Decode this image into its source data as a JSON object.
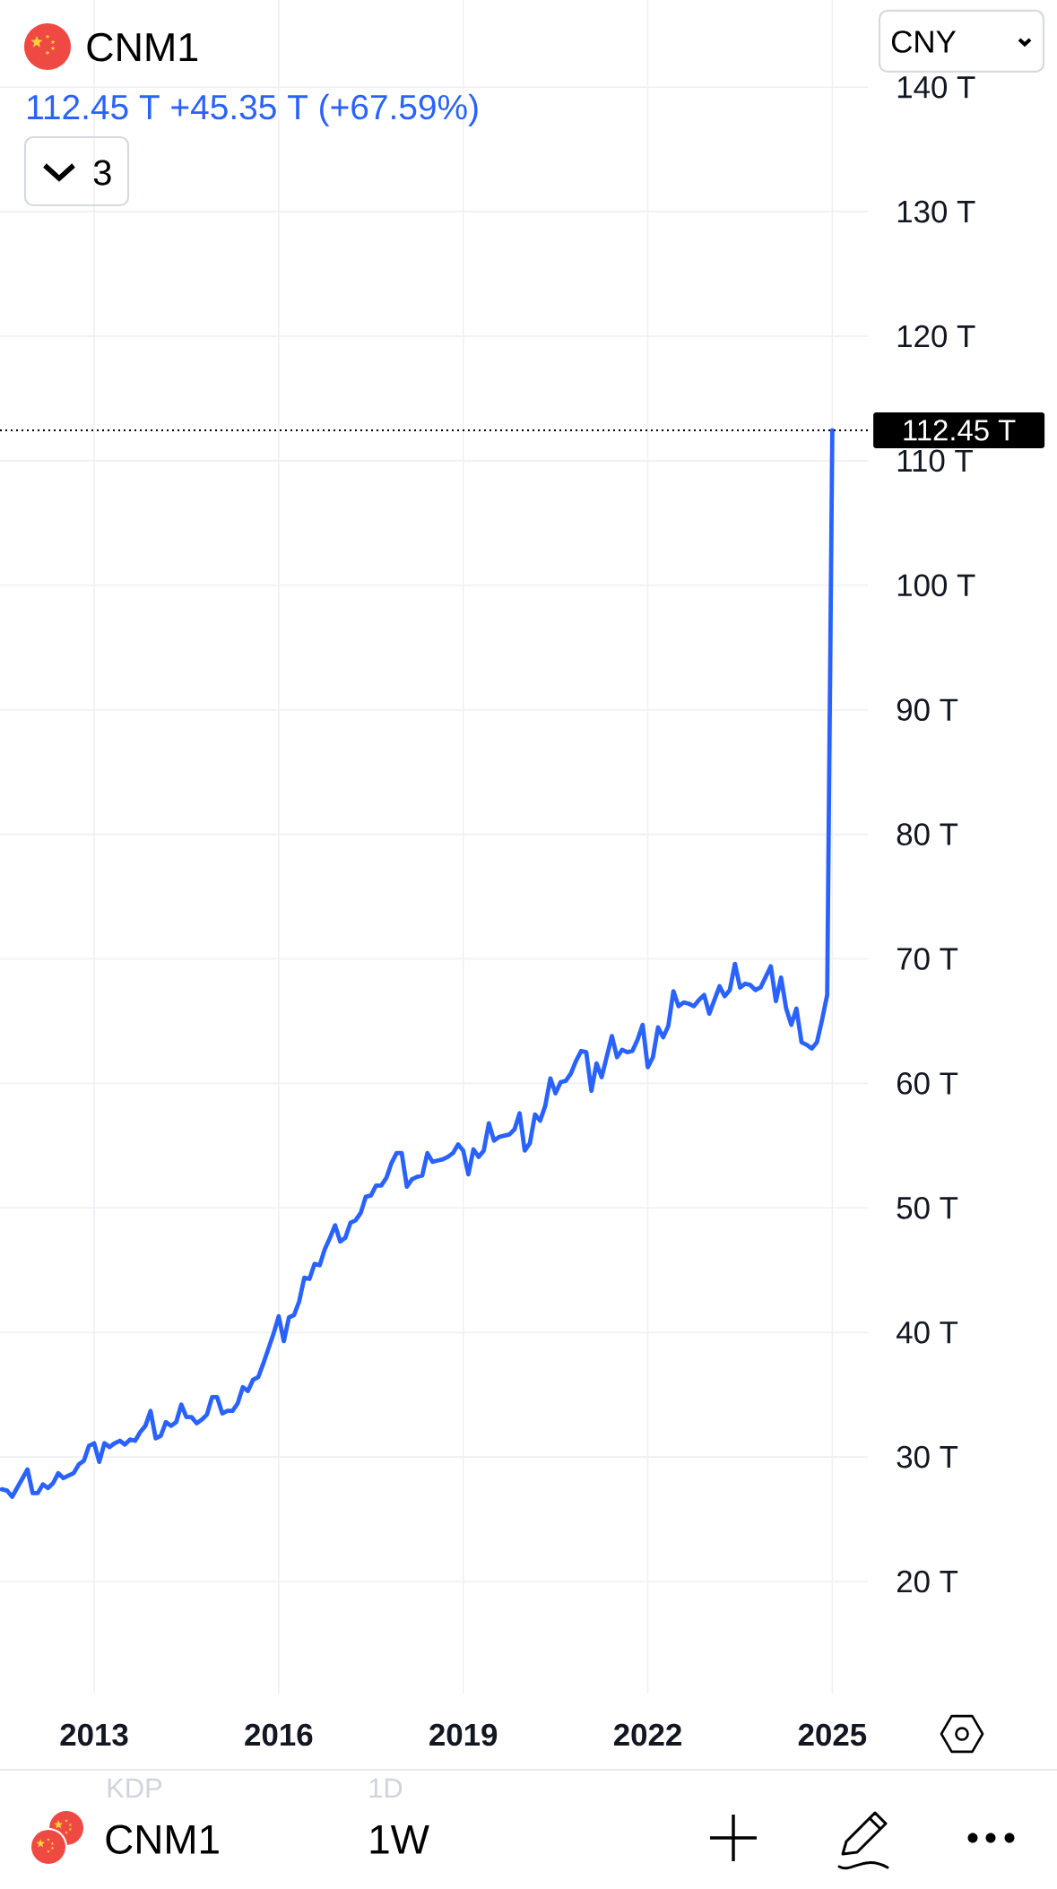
{
  "chart_data": {
    "type": "line",
    "title": "CNM1",
    "subtitle": "112.45 T  +45.35 T (+67.59%)",
    "annotations": [
      "3",
      "CNY",
      "KDP",
      "1D",
      "CNM1",
      "1W"
    ],
    "x": [
      "2011-07",
      "2011-08",
      "2011-09",
      "2011-12",
      "2012-01",
      "2012-02",
      "2012-03",
      "2012-04",
      "2012-05",
      "2012-06",
      "2012-07",
      "2012-09",
      "2012-10",
      "2012-11",
      "2012-12",
      "2013-01",
      "2013-02",
      "2013-03",
      "2013-04",
      "2013-05",
      "2013-06",
      "2013-07",
      "2013-08",
      "2013-09",
      "2013-10",
      "2013-11",
      "2013-12",
      "2014-01",
      "2014-02",
      "2014-03",
      "2014-04",
      "2014-05",
      "2014-06",
      "2014-07",
      "2014-08",
      "2014-09",
      "2014-10",
      "2014-11",
      "2014-12",
      "2015-01",
      "2015-02",
      "2015-03",
      "2015-04",
      "2015-05",
      "2015-06",
      "2015-07",
      "2015-08",
      "2015-09",
      "2015-10",
      "2015-11",
      "2015-12",
      "2016-01",
      "2016-02",
      "2016-03",
      "2016-04",
      "2016-05",
      "2016-06",
      "2016-07",
      "2016-08",
      "2016-09",
      "2016-10",
      "2016-11",
      "2016-12",
      "2017-01",
      "2017-02",
      "2017-03",
      "2017-04",
      "2017-05",
      "2017-06",
      "2017-07",
      "2017-08",
      "2017-09",
      "2017-10",
      "2017-11",
      "2017-12",
      "2018-01",
      "2018-02",
      "2018-03",
      "2018-04",
      "2018-05",
      "2018-06",
      "2018-07",
      "2018-08",
      "2018-09",
      "2018-10",
      "2018-11",
      "2018-12",
      "2019-01",
      "2019-02",
      "2019-03",
      "2019-04",
      "2019-05",
      "2019-06",
      "2019-07",
      "2019-08",
      "2019-10",
      "2019-11",
      "2019-12",
      "2020-01",
      "2020-02",
      "2020-03",
      "2020-04",
      "2020-05",
      "2020-06",
      "2020-07",
      "2020-08",
      "2020-09",
      "2020-10",
      "2020-11",
      "2020-12",
      "2021-01",
      "2021-02",
      "2021-03",
      "2021-04",
      "2021-06",
      "2021-07",
      "2021-08",
      "2021-09",
      "2021-10",
      "2021-11",
      "2021-12",
      "2022-01",
      "2022-02",
      "2022-03",
      "2022-04",
      "2022-05",
      "2022-06",
      "2022-07",
      "2022-08",
      "2022-09",
      "2022-10",
      "2022-11",
      "2022-12",
      "2023-01",
      "2023-03",
      "2023-04",
      "2023-05",
      "2023-06",
      "2023-07",
      "2023-08",
      "2023-09",
      "2023-10",
      "2023-11",
      "2024-01",
      "2024-02",
      "2024-03",
      "2024-04",
      "2024-05",
      "2024-06",
      "2024-07",
      "2024-08",
      "2024-09",
      "2024-10",
      "2024-11",
      "2024-12",
      "2025-01"
    ],
    "series": [
      {
        "color": "#2962ff",
        "values": [
          27.4,
          27.3,
          26.8,
          29.0,
          27.1,
          27.1,
          27.8,
          27.5,
          27.9,
          28.7,
          28.3,
          28.7,
          29.4,
          29.7,
          30.9,
          31.1,
          29.6,
          31.1,
          30.8,
          31.1,
          31.3,
          31.0,
          31.4,
          31.3,
          32.0,
          32.5,
          33.7,
          31.5,
          31.7,
          32.8,
          32.5,
          32.8,
          34.2,
          33.2,
          33.2,
          32.7,
          33.0,
          33.4,
          34.8,
          34.8,
          33.5,
          33.7,
          33.7,
          34.3,
          35.6,
          35.3,
          36.2,
          36.4,
          37.5,
          38.7,
          39.9,
          41.3,
          39.3,
          41.2,
          41.4,
          42.5,
          44.4,
          44.3,
          45.5,
          45.4,
          46.7,
          47.6,
          48.6,
          47.3,
          47.6,
          48.8,
          49.0,
          49.6,
          50.9,
          51.0,
          51.8,
          51.8,
          52.4,
          53.6,
          54.4,
          54.4,
          51.7,
          52.3,
          52.5,
          52.6,
          54.4,
          53.7,
          53.8,
          53.9,
          54.1,
          54.4,
          55.1,
          54.6,
          52.7,
          54.7,
          54.1,
          54.6,
          56.8,
          55.4,
          55.7,
          55.9,
          56.3,
          57.6,
          54.6,
          55.2,
          57.5,
          57.0,
          58.2,
          60.4,
          59.2,
          60.1,
          60.2,
          60.8,
          61.8,
          62.6,
          62.5,
          59.4,
          61.6,
          60.5,
          63.8,
          62.1,
          62.7,
          62.5,
          62.6,
          63.5,
          64.7,
          61.3,
          62.1,
          64.5,
          63.7,
          64.6,
          67.4,
          66.2,
          66.5,
          66.4,
          66.2,
          66.7,
          67.1,
          65.6,
          67.8,
          67.0,
          67.5,
          69.6,
          67.7,
          68.0,
          67.9,
          67.5,
          67.7,
          69.4,
          66.6,
          68.5,
          66.0,
          64.7,
          66.0,
          63.3,
          63.1,
          62.8,
          63.3,
          65.1,
          67.1,
          112.45
        ]
      }
    ],
    "xlim": [
      "2011-06-20",
      "2025-08-01"
    ],
    "xticks": [
      {
        "value": "2013",
        "label": "2013"
      },
      {
        "value": "2016",
        "label": "2016"
      },
      {
        "value": "2019",
        "label": "2019"
      },
      {
        "value": "2022",
        "label": "2022"
      },
      {
        "value": "2025",
        "label": "2025"
      }
    ],
    "ylim": [
      11,
      147
    ],
    "yticks": [
      {
        "value": 20,
        "label": "20 T"
      },
      {
        "value": 30,
        "label": "30 T"
      },
      {
        "value": 40,
        "label": "40 T"
      },
      {
        "value": 50,
        "label": "50 T"
      },
      {
        "value": 60,
        "label": "60 T"
      },
      {
        "value": 70,
        "label": "70 T"
      },
      {
        "value": 80,
        "label": "80 T"
      },
      {
        "value": 90,
        "label": "90 T"
      },
      {
        "value": 100,
        "label": "100 T"
      },
      {
        "value": 110,
        "label": "110 T"
      },
      {
        "value": 120,
        "label": "120 T"
      },
      {
        "value": 130,
        "label": "130 T"
      },
      {
        "value": 140,
        "label": "140 T"
      }
    ],
    "ref_lines": [
      {
        "axis": "y",
        "value": 112.45,
        "label": "112.45 T",
        "color": "#000000",
        "line_style": "dotted"
      }
    ],
    "grid": true,
    "marker": "none",
    "line_style": "solid"
  }
}
